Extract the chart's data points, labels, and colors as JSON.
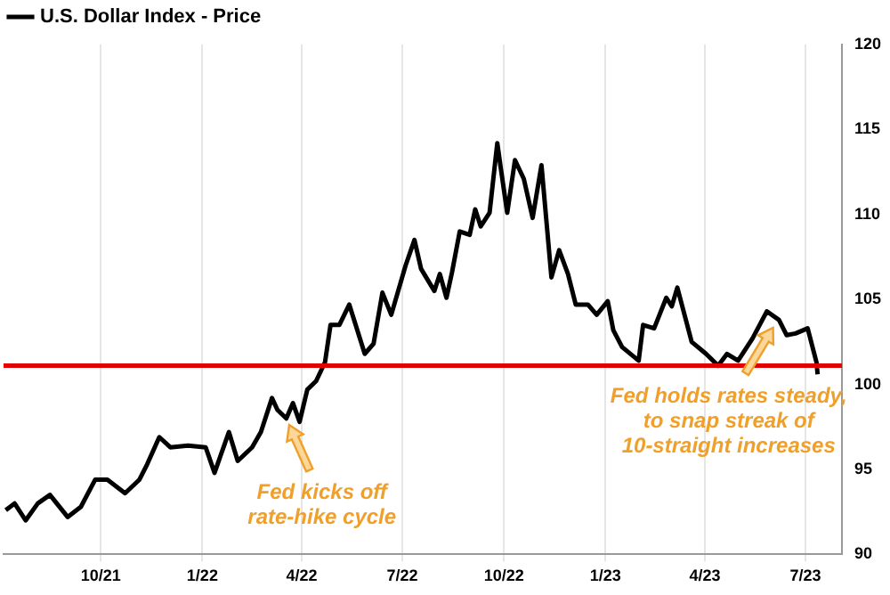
{
  "chart_data": {
    "type": "line",
    "x": [
      "2021-07-07",
      "2021-07-15",
      "2021-07-25",
      "2021-08-05",
      "2021-08-16",
      "2021-09-01",
      "2021-09-13",
      "2021-09-26",
      "2021-10-07",
      "2021-10-23",
      "2021-11-05",
      "2021-11-12",
      "2021-11-23",
      "2021-12-03",
      "2021-12-19",
      "2022-01-04",
      "2022-01-12",
      "2022-01-25",
      "2022-02-02",
      "2022-02-15",
      "2022-02-23",
      "2022-03-05",
      "2022-03-10",
      "2022-03-18",
      "2022-03-24",
      "2022-03-30",
      "2022-04-06",
      "2022-04-14",
      "2022-04-22",
      "2022-04-27",
      "2022-05-05",
      "2022-05-14",
      "2022-05-28",
      "2022-06-05",
      "2022-06-13",
      "2022-06-21",
      "2022-07-04",
      "2022-07-12",
      "2022-07-18",
      "2022-07-30",
      "2022-08-04",
      "2022-08-10",
      "2022-08-15",
      "2022-08-22",
      "2022-08-31",
      "2022-09-05",
      "2022-09-10",
      "2022-09-18",
      "2022-09-25",
      "2022-09-28",
      "2022-10-04",
      "2022-10-11",
      "2022-10-19",
      "2022-10-27",
      "2022-11-04",
      "2022-11-13",
      "2022-11-20",
      "2022-11-28",
      "2022-12-05",
      "2022-12-16",
      "2022-12-24",
      "2023-01-03",
      "2023-01-08",
      "2023-01-16",
      "2023-01-31",
      "2023-02-04",
      "2023-02-14",
      "2023-02-25",
      "2023-03-02",
      "2023-03-07",
      "2023-03-20",
      "2023-04-02",
      "2023-04-13",
      "2023-04-21",
      "2023-05-01",
      "2023-05-14",
      "2023-05-27",
      "2023-06-07",
      "2023-06-14",
      "2023-06-22",
      "2023-07-03",
      "2023-07-11",
      "2023-07-12"
    ],
    "series": [
      {
        "name": "U.S. Dollar Index - Price",
        "color": "#000000",
        "values": [
          92.6,
          93.0,
          92.0,
          93.0,
          93.5,
          92.2,
          92.8,
          94.4,
          94.4,
          93.6,
          94.4,
          95.3,
          96.9,
          96.3,
          96.4,
          96.3,
          94.8,
          97.2,
          95.5,
          96.3,
          97.2,
          99.2,
          98.5,
          98.0,
          98.9,
          97.8,
          99.7,
          100.2,
          101.3,
          103.5,
          103.5,
          104.7,
          101.8,
          102.4,
          105.4,
          104.1,
          107.0,
          108.5,
          106.8,
          105.5,
          106.5,
          105.1,
          106.6,
          109.0,
          108.8,
          110.3,
          109.3,
          110.1,
          114.2,
          112.8,
          110.1,
          113.2,
          112.1,
          109.8,
          112.9,
          106.3,
          107.9,
          106.5,
          104.7,
          104.7,
          104.1,
          104.9,
          103.2,
          102.2,
          101.4,
          103.5,
          103.3,
          105.1,
          104.6,
          105.7,
          102.5,
          101.8,
          101.1,
          101.8,
          101.4,
          102.7,
          104.3,
          103.8,
          102.9,
          103.0,
          103.3,
          101.3,
          100.6
        ]
      }
    ],
    "xlim": [
      "2021-07-05",
      "2023-08-03"
    ],
    "xticks": [
      {
        "value": "2021-10-01",
        "label": "10/21"
      },
      {
        "value": "2022-01-01",
        "label": "1/22"
      },
      {
        "value": "2022-04-01",
        "label": "4/22"
      },
      {
        "value": "2022-07-01",
        "label": "7/22"
      },
      {
        "value": "2022-10-01",
        "label": "10/22"
      },
      {
        "value": "2023-01-01",
        "label": "1/23"
      },
      {
        "value": "2023-04-01",
        "label": "4/23"
      },
      {
        "value": "2023-07-01",
        "label": "7/23"
      }
    ],
    "ylim": [
      90,
      120
    ],
    "yticks": [
      90,
      95,
      100,
      105,
      110,
      115,
      120
    ],
    "ref_lines": [
      {
        "axis": "y",
        "value": 101.1,
        "color": "#e00000"
      }
    ],
    "annotations": [
      {
        "text": "Fed kicks off\nrate-hike cycle",
        "x": "2022-03-18",
        "y": 98.0
      },
      {
        "text": "Fed holds rates steady,\nto snap streak of\n10-straight increases",
        "x": "2023-06-05",
        "y": 103.7
      }
    ],
    "grid": "x",
    "legend": "top left",
    "marker": "none",
    "line_style": "solid"
  }
}
